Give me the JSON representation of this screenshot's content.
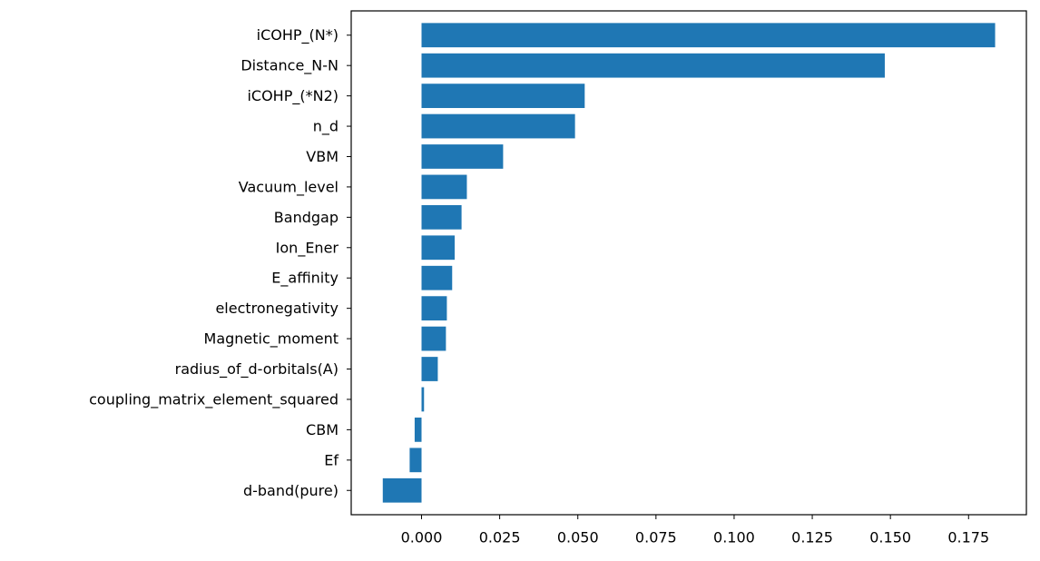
{
  "chart_data": {
    "type": "bar",
    "orientation": "horizontal",
    "title": "",
    "xlabel": "",
    "ylabel": "",
    "grid": false,
    "legend": "none",
    "bar_color": "#1f77b4",
    "xlim": [
      -0.0225,
      0.1935
    ],
    "xticks": [
      0.0,
      0.025,
      0.05,
      0.075,
      0.1,
      0.125,
      0.15,
      0.175
    ],
    "xtick_labels": [
      "0.000",
      "0.025",
      "0.050",
      "0.075",
      "0.100",
      "0.125",
      "0.150",
      "0.175"
    ],
    "categories": [
      "iCOHP_(N*)",
      "Distance_N-N",
      "iCOHP_(*N2)",
      "n_d",
      "VBM",
      "Vacuum_level",
      "Bandgap",
      "Ion_Ener",
      "E_affinity",
      "electronegativity",
      "Magnetic_moment",
      "radius_of_d-orbitals(A)",
      "coupling_matrix_element_squared",
      "CBM",
      "Ef",
      "d-band(pure)"
    ],
    "values": [
      0.1835,
      0.1482,
      0.0522,
      0.0491,
      0.0261,
      0.0145,
      0.0128,
      0.0106,
      0.0098,
      0.0081,
      0.0078,
      0.0052,
      0.0008,
      -0.0022,
      -0.0038,
      -0.0124
    ]
  }
}
